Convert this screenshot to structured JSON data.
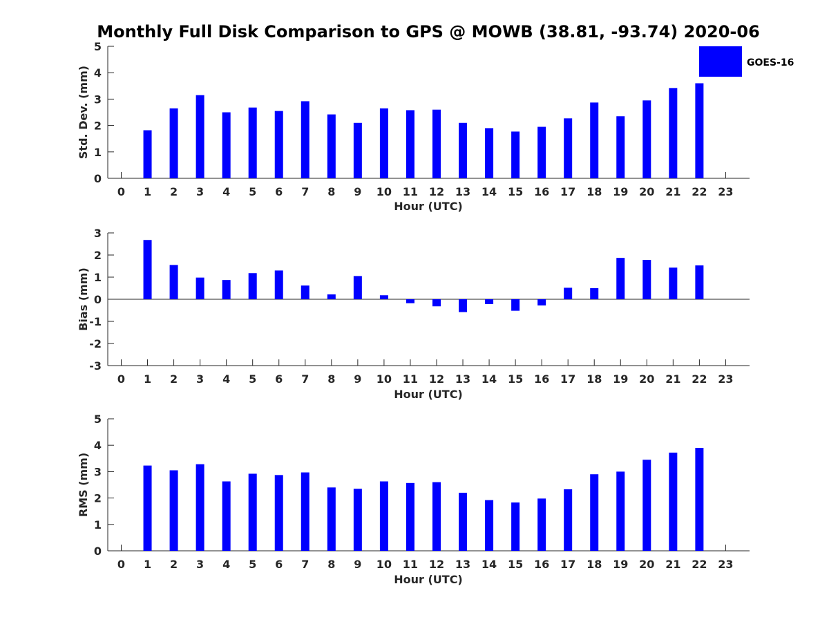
{
  "title": "Monthly Full Disk Comparison to GPS @ MOWB (38.81, -93.74) 2020-06",
  "legend": {
    "label": "GOES-16",
    "color": "#0000ff",
    "placement": "top-right"
  },
  "chart_data": [
    {
      "type": "bar",
      "categories": [
        "0",
        "1",
        "2",
        "3",
        "4",
        "5",
        "6",
        "7",
        "8",
        "9",
        "10",
        "11",
        "12",
        "13",
        "14",
        "15",
        "16",
        "17",
        "18",
        "19",
        "20",
        "21",
        "22",
        "23"
      ],
      "series": [
        {
          "name": "GOES-16",
          "values": [
            null,
            1.82,
            2.65,
            3.15,
            2.5,
            2.68,
            2.55,
            2.92,
            2.42,
            2.1,
            2.65,
            2.58,
            2.6,
            2.1,
            1.9,
            1.77,
            1.95,
            2.27,
            2.87,
            2.35,
            2.95,
            3.42,
            3.6,
            null
          ]
        }
      ],
      "xlabel": "Hour (UTC)",
      "ylabel": "Std. Dev. (mm)",
      "ylim": [
        0,
        5
      ],
      "yticks": [
        "0",
        "1",
        "2",
        "3",
        "4",
        "5"
      ],
      "color": "#0000ff"
    },
    {
      "type": "bar",
      "categories": [
        "0",
        "1",
        "2",
        "3",
        "4",
        "5",
        "6",
        "7",
        "8",
        "9",
        "10",
        "11",
        "12",
        "13",
        "14",
        "15",
        "16",
        "17",
        "18",
        "19",
        "20",
        "21",
        "22",
        "23"
      ],
      "series": [
        {
          "name": "GOES-16",
          "values": [
            null,
            2.68,
            1.55,
            0.98,
            0.87,
            1.18,
            1.3,
            0.62,
            0.22,
            1.05,
            0.18,
            -0.18,
            -0.32,
            -0.58,
            -0.22,
            -0.52,
            -0.28,
            0.52,
            0.5,
            1.87,
            1.78,
            1.43,
            1.53,
            null
          ]
        }
      ],
      "xlabel": "Hour (UTC)",
      "ylabel": "Bias (mm)",
      "ylim": [
        -3,
        3
      ],
      "yticks": [
        "-3",
        "-2",
        "-1",
        "0",
        "1",
        "2",
        "3"
      ],
      "zero_line": true,
      "color": "#0000ff"
    },
    {
      "type": "bar",
      "categories": [
        "0",
        "1",
        "2",
        "3",
        "4",
        "5",
        "6",
        "7",
        "8",
        "9",
        "10",
        "11",
        "12",
        "13",
        "14",
        "15",
        "16",
        "17",
        "18",
        "19",
        "20",
        "21",
        "22",
        "23"
      ],
      "series": [
        {
          "name": "GOES-16",
          "values": [
            null,
            3.23,
            3.05,
            3.28,
            2.63,
            2.92,
            2.87,
            2.97,
            2.4,
            2.35,
            2.63,
            2.57,
            2.6,
            2.2,
            1.92,
            1.83,
            1.98,
            2.33,
            2.9,
            3.0,
            3.45,
            3.72,
            3.9,
            null
          ]
        }
      ],
      "xlabel": "Hour (UTC)",
      "ylabel": "RMS (mm)",
      "ylim": [
        0,
        5
      ],
      "yticks": [
        "0",
        "1",
        "2",
        "3",
        "4",
        "5"
      ],
      "color": "#0000ff"
    }
  ]
}
